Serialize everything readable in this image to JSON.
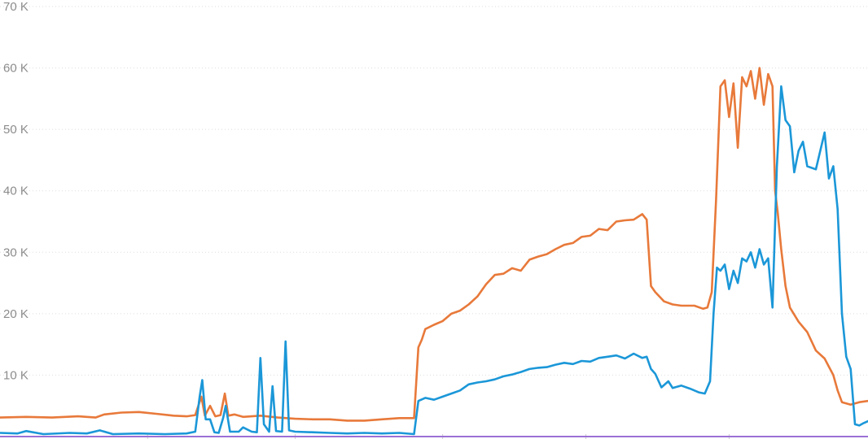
{
  "chart_data": {
    "type": "line",
    "title": "",
    "xlabel": "",
    "ylabel": "",
    "ylim": [
      0,
      70000
    ],
    "xlim": [
      0,
      1
    ],
    "grid": true,
    "y_ticks": [
      {
        "value": 10000,
        "label": "10 K"
      },
      {
        "value": 20000,
        "label": "20 K"
      },
      {
        "value": 30000,
        "label": "30 K"
      },
      {
        "value": 40000,
        "label": "40 K"
      },
      {
        "value": 50000,
        "label": "50 K"
      },
      {
        "value": 60000,
        "label": "60 K"
      },
      {
        "value": 70000,
        "label": "70 K"
      }
    ],
    "x_ticks": [
      0.17,
      0.34,
      0.51,
      0.675,
      0.84
    ],
    "series": [
      {
        "color": "#e8793a",
        "points": [
          [
            0.0,
            3100
          ],
          [
            0.03,
            3200
          ],
          [
            0.06,
            3100
          ],
          [
            0.09,
            3300
          ],
          [
            0.11,
            3100
          ],
          [
            0.12,
            3600
          ],
          [
            0.14,
            3900
          ],
          [
            0.16,
            4000
          ],
          [
            0.18,
            3700
          ],
          [
            0.2,
            3400
          ],
          [
            0.215,
            3300
          ],
          [
            0.225,
            3500
          ],
          [
            0.232,
            6500
          ],
          [
            0.236,
            3400
          ],
          [
            0.242,
            5000
          ],
          [
            0.248,
            3300
          ],
          [
            0.254,
            3500
          ],
          [
            0.259,
            7000
          ],
          [
            0.263,
            3400
          ],
          [
            0.27,
            3600
          ],
          [
            0.28,
            3200
          ],
          [
            0.3,
            3400
          ],
          [
            0.32,
            3100
          ],
          [
            0.34,
            2900
          ],
          [
            0.36,
            2800
          ],
          [
            0.38,
            2800
          ],
          [
            0.4,
            2600
          ],
          [
            0.42,
            2600
          ],
          [
            0.44,
            2800
          ],
          [
            0.46,
            3000
          ],
          [
            0.477,
            3000
          ],
          [
            0.482,
            14500
          ],
          [
            0.486,
            15800
          ],
          [
            0.49,
            17500
          ],
          [
            0.5,
            18200
          ],
          [
            0.51,
            18800
          ],
          [
            0.52,
            20000
          ],
          [
            0.53,
            20500
          ],
          [
            0.54,
            21500
          ],
          [
            0.55,
            22800
          ],
          [
            0.56,
            24800
          ],
          [
            0.57,
            26300
          ],
          [
            0.58,
            26500
          ],
          [
            0.59,
            27400
          ],
          [
            0.6,
            27000
          ],
          [
            0.61,
            28800
          ],
          [
            0.62,
            29300
          ],
          [
            0.63,
            29700
          ],
          [
            0.64,
            30500
          ],
          [
            0.65,
            31200
          ],
          [
            0.66,
            31500
          ],
          [
            0.67,
            32500
          ],
          [
            0.68,
            32700
          ],
          [
            0.69,
            33800
          ],
          [
            0.7,
            33600
          ],
          [
            0.71,
            35000
          ],
          [
            0.72,
            35200
          ],
          [
            0.73,
            35300
          ],
          [
            0.74,
            36200
          ],
          [
            0.745,
            35300
          ],
          [
            0.75,
            24500
          ],
          [
            0.755,
            23500
          ],
          [
            0.765,
            22000
          ],
          [
            0.775,
            21500
          ],
          [
            0.785,
            21300
          ],
          [
            0.8,
            21300
          ],
          [
            0.81,
            20800
          ],
          [
            0.815,
            21000
          ],
          [
            0.82,
            23500
          ],
          [
            0.825,
            38500
          ],
          [
            0.83,
            57000
          ],
          [
            0.835,
            58000
          ],
          [
            0.84,
            52000
          ],
          [
            0.845,
            57500
          ],
          [
            0.85,
            47000
          ],
          [
            0.855,
            58500
          ],
          [
            0.86,
            57000
          ],
          [
            0.865,
            59500
          ],
          [
            0.87,
            55000
          ],
          [
            0.875,
            60000
          ],
          [
            0.88,
            54000
          ],
          [
            0.885,
            59000
          ],
          [
            0.89,
            57000
          ],
          [
            0.893,
            40000
          ],
          [
            0.896,
            36500
          ],
          [
            0.9,
            30500
          ],
          [
            0.905,
            24500
          ],
          [
            0.91,
            21000
          ],
          [
            0.92,
            18700
          ],
          [
            0.93,
            17000
          ],
          [
            0.94,
            14000
          ],
          [
            0.95,
            12700
          ],
          [
            0.96,
            10000
          ],
          [
            0.965,
            7500
          ],
          [
            0.97,
            5600
          ],
          [
            0.98,
            5200
          ],
          [
            0.99,
            5600
          ],
          [
            1.0,
            5800
          ]
        ]
      },
      {
        "color": "#1b97d8",
        "points": [
          [
            0.0,
            600
          ],
          [
            0.02,
            500
          ],
          [
            0.03,
            900
          ],
          [
            0.05,
            400
          ],
          [
            0.08,
            600
          ],
          [
            0.1,
            500
          ],
          [
            0.115,
            1000
          ],
          [
            0.13,
            400
          ],
          [
            0.16,
            500
          ],
          [
            0.19,
            400
          ],
          [
            0.215,
            500
          ],
          [
            0.225,
            800
          ],
          [
            0.23,
            6500
          ],
          [
            0.233,
            9200
          ],
          [
            0.237,
            2800
          ],
          [
            0.242,
            2800
          ],
          [
            0.247,
            700
          ],
          [
            0.252,
            600
          ],
          [
            0.257,
            3000
          ],
          [
            0.26,
            5000
          ],
          [
            0.265,
            800
          ],
          [
            0.275,
            800
          ],
          [
            0.28,
            1500
          ],
          [
            0.29,
            800
          ],
          [
            0.296,
            700
          ],
          [
            0.3,
            12800
          ],
          [
            0.304,
            2000
          ],
          [
            0.31,
            800
          ],
          [
            0.314,
            8200
          ],
          [
            0.318,
            900
          ],
          [
            0.325,
            800
          ],
          [
            0.329,
            15500
          ],
          [
            0.333,
            1000
          ],
          [
            0.34,
            800
          ],
          [
            0.36,
            700
          ],
          [
            0.38,
            600
          ],
          [
            0.4,
            500
          ],
          [
            0.42,
            600
          ],
          [
            0.44,
            500
          ],
          [
            0.46,
            600
          ],
          [
            0.477,
            400
          ],
          [
            0.482,
            5800
          ],
          [
            0.49,
            6300
          ],
          [
            0.5,
            6000
          ],
          [
            0.51,
            6500
          ],
          [
            0.52,
            7000
          ],
          [
            0.53,
            7500
          ],
          [
            0.54,
            8500
          ],
          [
            0.55,
            8800
          ],
          [
            0.56,
            9000
          ],
          [
            0.57,
            9300
          ],
          [
            0.58,
            9800
          ],
          [
            0.59,
            10100
          ],
          [
            0.6,
            10500
          ],
          [
            0.61,
            11000
          ],
          [
            0.62,
            11200
          ],
          [
            0.63,
            11300
          ],
          [
            0.64,
            11700
          ],
          [
            0.65,
            12000
          ],
          [
            0.66,
            11800
          ],
          [
            0.67,
            12300
          ],
          [
            0.68,
            12200
          ],
          [
            0.69,
            12800
          ],
          [
            0.7,
            13000
          ],
          [
            0.71,
            13200
          ],
          [
            0.72,
            12700
          ],
          [
            0.73,
            13500
          ],
          [
            0.74,
            12800
          ],
          [
            0.745,
            13000
          ],
          [
            0.75,
            11000
          ],
          [
            0.755,
            10200
          ],
          [
            0.762,
            8000
          ],
          [
            0.77,
            9000
          ],
          [
            0.775,
            7900
          ],
          [
            0.785,
            8300
          ],
          [
            0.795,
            7800
          ],
          [
            0.805,
            7200
          ],
          [
            0.812,
            7000
          ],
          [
            0.818,
            9000
          ],
          [
            0.822,
            20000
          ],
          [
            0.826,
            27500
          ],
          [
            0.83,
            27000
          ],
          [
            0.835,
            28000
          ],
          [
            0.84,
            24000
          ],
          [
            0.845,
            27000
          ],
          [
            0.85,
            25000
          ],
          [
            0.855,
            29000
          ],
          [
            0.86,
            28500
          ],
          [
            0.865,
            30000
          ],
          [
            0.87,
            27500
          ],
          [
            0.875,
            30500
          ],
          [
            0.88,
            28000
          ],
          [
            0.885,
            29000
          ],
          [
            0.89,
            21000
          ],
          [
            0.895,
            44000
          ],
          [
            0.9,
            57000
          ],
          [
            0.905,
            51500
          ],
          [
            0.91,
            50500
          ],
          [
            0.915,
            43000
          ],
          [
            0.92,
            46500
          ],
          [
            0.925,
            48000
          ],
          [
            0.93,
            44000
          ],
          [
            0.94,
            43500
          ],
          [
            0.95,
            49500
          ],
          [
            0.955,
            42000
          ],
          [
            0.96,
            44000
          ],
          [
            0.965,
            37000
          ],
          [
            0.97,
            20000
          ],
          [
            0.975,
            13000
          ],
          [
            0.98,
            11000
          ],
          [
            0.985,
            2000
          ],
          [
            0.99,
            1800
          ],
          [
            0.995,
            2200
          ],
          [
            1.0,
            2500
          ]
        ]
      },
      {
        "color": "#9b6fd6",
        "points": [
          [
            0.0,
            0
          ],
          [
            1.0,
            0
          ]
        ]
      }
    ]
  }
}
